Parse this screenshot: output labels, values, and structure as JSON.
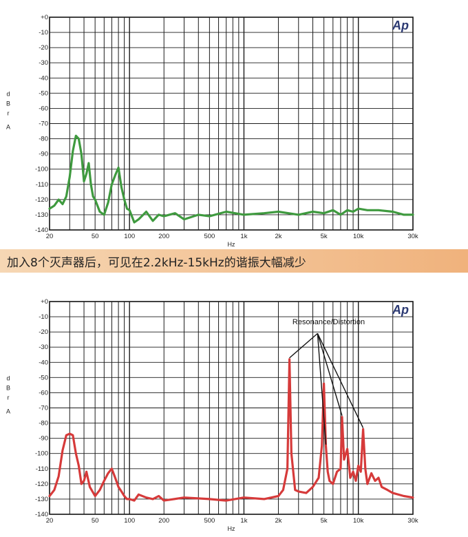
{
  "caption": "加入8个灭声器后，可见在2.2kHz-15kHz的谐振大幅减少",
  "chart_data": [
    {
      "type": "line",
      "color": "#3f9a3f",
      "logo": "Ap",
      "xlabel": "Hz",
      "ylabel": [
        "d",
        "B",
        "r",
        "A"
      ],
      "xscale": "log",
      "xlim": [
        20,
        30000
      ],
      "ylim": [
        -140,
        0
      ],
      "grid": true,
      "xtick_labels": [
        "20",
        "50",
        "100",
        "200",
        "500",
        "1k",
        "2k",
        "5k",
        "10k",
        "30k"
      ],
      "ytick_labels": [
        "+0",
        "-10",
        "-20",
        "-30",
        "-40",
        "-50",
        "-60",
        "-70",
        "-80",
        "-90",
        "-100",
        "-110",
        "-120",
        "-130",
        "-140"
      ],
      "series": [
        {
          "x": [
            20,
            22,
            24,
            26,
            28,
            30,
            32,
            34,
            36,
            38,
            40,
            42,
            44,
            46,
            48,
            50,
            55,
            60,
            65,
            70,
            75,
            80,
            85,
            90,
            95,
            100,
            110,
            120,
            140,
            160,
            180,
            200,
            250,
            300,
            400,
            500,
            700,
            1000,
            1500,
            2000,
            3000,
            4000,
            5000,
            6000,
            7000,
            8000,
            9000,
            10000,
            12000,
            15000,
            20000,
            25000,
            30000
          ],
          "values": [
            -126,
            -124,
            -120,
            -123,
            -118,
            -105,
            -88,
            -78,
            -80,
            -90,
            -108,
            -103,
            -96,
            -110,
            -118,
            -120,
            -128,
            -130,
            -122,
            -110,
            -104,
            -99,
            -112,
            -120,
            -126,
            -127,
            -135,
            -133,
            -128,
            -134,
            -130,
            -131,
            -129,
            -133,
            -130,
            -131,
            -128,
            -130,
            -129,
            -128,
            -130,
            -128,
            -129,
            -127,
            -130,
            -127,
            -128,
            -126,
            -127,
            -127,
            -128,
            -130,
            -130
          ]
        }
      ]
    },
    {
      "type": "line",
      "color": "#d63a3a",
      "logo": "Ap",
      "xlabel": "Hz",
      "ylabel": [
        "d",
        "B",
        "r",
        "A"
      ],
      "xscale": "log",
      "xlim": [
        20,
        30000
      ],
      "ylim": [
        -140,
        0
      ],
      "grid": true,
      "xtick_labels": [
        "20",
        "50",
        "100",
        "200",
        "500",
        "1k",
        "2k",
        "5k",
        "10k",
        "30k"
      ],
      "ytick_labels": [
        "+0",
        "-10",
        "-20",
        "-30",
        "-40",
        "-50",
        "-60",
        "-70",
        "-80",
        "-90",
        "-100",
        "-110",
        "-120",
        "-130",
        "-140"
      ],
      "annotation": "Resonance/Distortion",
      "annotation_targets": [
        2500,
        5200,
        7200,
        11000
      ],
      "series": [
        {
          "x": [
            20,
            22,
            24,
            26,
            28,
            30,
            32,
            34,
            36,
            38,
            40,
            42,
            45,
            50,
            55,
            60,
            65,
            70,
            75,
            80,
            85,
            90,
            95,
            100,
            110,
            120,
            140,
            160,
            180,
            200,
            300,
            500,
            700,
            1000,
            1500,
            2000,
            2200,
            2400,
            2500,
            2600,
            2800,
            3000,
            3500,
            4000,
            4500,
            4800,
            5000,
            5200,
            5400,
            5600,
            6000,
            6500,
            7000,
            7200,
            7500,
            8000,
            8500,
            9000,
            9500,
            10000,
            10500,
            11000,
            11500,
            12000,
            13000,
            14000,
            15000,
            16000,
            18000,
            20000,
            25000,
            30000
          ],
          "values": [
            -128,
            -124,
            -115,
            -98,
            -88,
            -87,
            -88,
            -100,
            -108,
            -120,
            -118,
            -112,
            -122,
            -128,
            -124,
            -118,
            -113,
            -110,
            -116,
            -122,
            -125,
            -128,
            -130,
            -130,
            -131,
            -127,
            -129,
            -130,
            -128,
            -131,
            -129,
            -130,
            -131,
            -129,
            -130,
            -128,
            -124,
            -110,
            -38,
            -100,
            -124,
            -125,
            -126,
            -122,
            -116,
            -95,
            -54,
            -95,
            -112,
            -118,
            -120,
            -112,
            -110,
            -76,
            -104,
            -97,
            -116,
            -112,
            -118,
            -108,
            -112,
            -84,
            -110,
            -120,
            -113,
            -118,
            -116,
            -122,
            -124,
            -126,
            -128,
            -129
          ]
        }
      ]
    }
  ]
}
